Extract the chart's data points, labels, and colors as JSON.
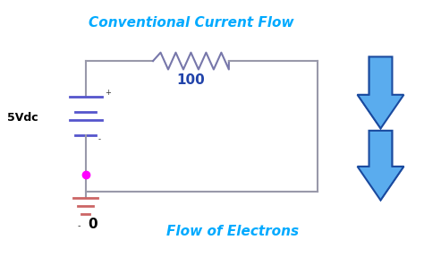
{
  "bg_color": "#ffffff",
  "circuit_color": "#9999aa",
  "resistor_color": "#7777aa",
  "battery_color": "#5555cc",
  "ground_color": "#cc6666",
  "dot_color": "#FF00FF",
  "arrow_dark": "#1a4a9f",
  "arrow_light": "#5aacee",
  "title_color": "#00AAFF",
  "resistor_label_color": "#2244aa",
  "voltage_label_color": "#000000",
  "ground_label_color": "#000000",
  "title_text": "Conventional Current Flow",
  "bottom_text": "Flow of Electrons",
  "resistor_value": "100",
  "voltage_label": "5Vdc",
  "ground_label": "0",
  "plus_label": "+",
  "minus_label": "-",
  "ground_minus": "-",
  "circuit_lw": 1.5,
  "figsize": [
    4.74,
    2.87
  ],
  "dpi": 100
}
